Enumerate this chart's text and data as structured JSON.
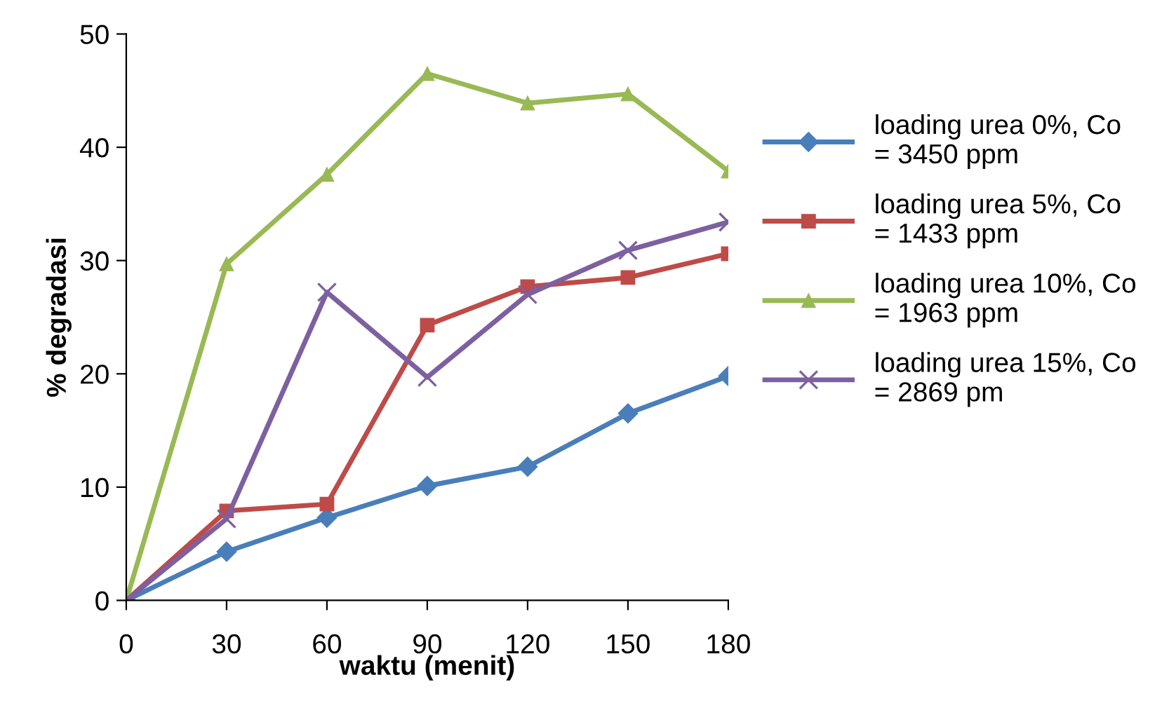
{
  "chart_data": {
    "type": "line",
    "xlabel": "waktu (menit)",
    "ylabel": "% degradasi",
    "x": [
      0,
      30,
      60,
      90,
      120,
      150,
      180
    ],
    "xlim": [
      0,
      180
    ],
    "xticks": [
      0,
      30,
      60,
      90,
      120,
      150,
      180
    ],
    "ylim": [
      0,
      50
    ],
    "yticks": [
      0,
      10,
      20,
      30,
      40,
      50
    ],
    "grid": false,
    "legend": "right",
    "line_style": "solid",
    "series": [
      {
        "name": "loading urea 0%, Co\n= 3450 ppm",
        "color": "#4a7ebb",
        "marker": "diamond",
        "values": [
          0,
          4.3,
          7.3,
          10.1,
          11.8,
          16.5,
          19.8
        ]
      },
      {
        "name": "loading urea 5%, Co\n= 1433 ppm",
        "color": "#be4b48",
        "marker": "square",
        "values": [
          0,
          7.9,
          8.5,
          24.3,
          27.7,
          28.5,
          30.6
        ]
      },
      {
        "name": "loading urea 10%, Co\n= 1963 ppm",
        "color": "#98b954",
        "marker": "triangle",
        "values": [
          0,
          29.7,
          37.6,
          46.5,
          43.9,
          44.7,
          37.9
        ]
      },
      {
        "name": "loading urea 15%, Co\n= 2869 pm",
        "color": "#7d60a0",
        "marker": "cross",
        "values": [
          0,
          7.2,
          27.2,
          19.7,
          27.0,
          30.9,
          33.4
        ]
      }
    ]
  }
}
